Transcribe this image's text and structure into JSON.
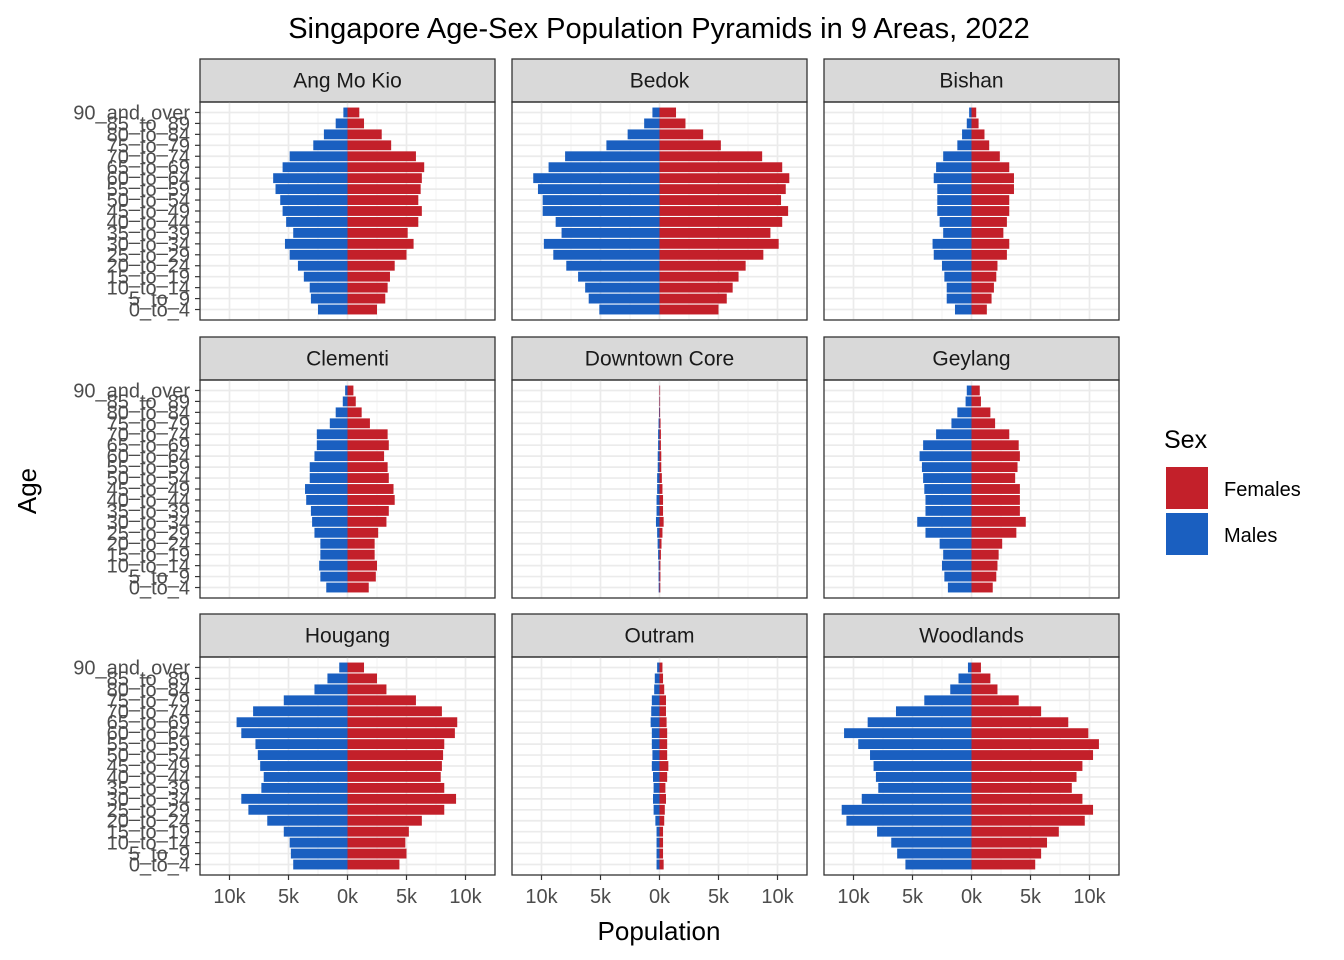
{
  "chart_data": {
    "type": "bar",
    "title": "Singapore Age-Sex Population Pyramids in 9 Areas, 2022",
    "xlabel": "Population",
    "ylabel": "Age",
    "xlim": [
      -12500,
      12500
    ],
    "x_tick_values": [
      -10000,
      -5000,
      0,
      5000,
      10000
    ],
    "x_tick_labels": [
      "10k",
      "5k",
      "0k",
      "5k",
      "10k"
    ],
    "grid": true,
    "legend": {
      "title": "Sex",
      "position": "right",
      "entries": [
        {
          "name": "Females",
          "color": "#c3202a"
        },
        {
          "name": "Males",
          "color": "#1a5fc0"
        }
      ]
    },
    "categories": [
      "0_to_4",
      "5_to_9",
      "10_to_14",
      "15_to_19",
      "20_to_24",
      "25_to_29",
      "30_to_34",
      "35_to_39",
      "40_to_44",
      "45_to_49",
      "50_to_54",
      "55_to_59",
      "60_to_64",
      "65_to_69",
      "70_to_74",
      "75_to_79",
      "80_to_84",
      "85_to_89",
      "90_and_over"
    ],
    "panels": [
      {
        "area": "Ang Mo Kio",
        "series": [
          {
            "name": "Males",
            "values": [
              2500,
              3100,
              3200,
              3700,
              4200,
              4900,
              5300,
              4600,
              5200,
              5500,
              5700,
              6100,
              6300,
              5500,
              4900,
              2900,
              2000,
              1000,
              350
            ]
          },
          {
            "name": "Females",
            "values": [
              2500,
              3200,
              3400,
              3600,
              4000,
              5000,
              5600,
              5100,
              6000,
              6300,
              6000,
              6200,
              6300,
              6500,
              5800,
              3700,
              2900,
              1400,
              1000
            ]
          }
        ]
      },
      {
        "area": "Bedok",
        "series": [
          {
            "name": "Males",
            "values": [
              5100,
              6000,
              6300,
              6900,
              7900,
              9000,
              9800,
              8300,
              8800,
              9900,
              9900,
              10300,
              10700,
              9400,
              8000,
              4500,
              2700,
              1300,
              600
            ]
          },
          {
            "name": "Females",
            "values": [
              5000,
              5700,
              6200,
              6700,
              7300,
              8800,
              10100,
              9400,
              10400,
              10900,
              10300,
              10700,
              11000,
              10400,
              8700,
              5200,
              3700,
              2200,
              1400
            ]
          }
        ]
      },
      {
        "area": "Bishan",
        "series": [
          {
            "name": "Males",
            "values": [
              1400,
              2100,
              2100,
              2300,
              2500,
              3200,
              3300,
              2400,
              2700,
              2900,
              2900,
              2900,
              3200,
              3000,
              2400,
              1200,
              800,
              400,
              200
            ]
          },
          {
            "name": "Females",
            "values": [
              1300,
              1700,
              1900,
              2100,
              2200,
              3000,
              3200,
              2700,
              3000,
              3200,
              3200,
              3600,
              3600,
              3200,
              2400,
              1500,
              1100,
              600,
              400
            ]
          }
        ]
      },
      {
        "area": "Clementi",
        "series": [
          {
            "name": "Males",
            "values": [
              1800,
              2300,
              2400,
              2300,
              2300,
              2800,
              3000,
              3100,
              3500,
              3600,
              3200,
              3200,
              2800,
              2600,
              2600,
              1500,
              1000,
              400,
              200
            ]
          },
          {
            "name": "Females",
            "values": [
              1800,
              2400,
              2500,
              2300,
              2300,
              2600,
              3300,
              3500,
              4000,
              3900,
              3500,
              3400,
              3100,
              3500,
              3400,
              1900,
              1200,
              700,
              500
            ]
          }
        ]
      },
      {
        "area": "Downtown Core",
        "series": [
          {
            "name": "Males",
            "values": [
              70,
              80,
              80,
              120,
              160,
              200,
              300,
              250,
              250,
              200,
              200,
              150,
              150,
              120,
              120,
              80,
              40,
              20,
              10
            ]
          },
          {
            "name": "Females",
            "values": [
              70,
              80,
              80,
              120,
              170,
              250,
              350,
              300,
              300,
              250,
              200,
              150,
              150,
              120,
              120,
              90,
              50,
              20,
              10
            ]
          }
        ]
      },
      {
        "area": "Geylang",
        "series": [
          {
            "name": "Males",
            "values": [
              2000,
              2300,
              2500,
              2400,
              2700,
              3900,
              4600,
              3900,
              3900,
              4000,
              4100,
              4200,
              4400,
              4100,
              3000,
              1700,
              1200,
              500,
              400
            ]
          },
          {
            "name": "Females",
            "values": [
              1800,
              2100,
              2200,
              2300,
              2600,
              3800,
              4600,
              4100,
              4100,
              4100,
              3700,
              3900,
              4100,
              4000,
              3200,
              2000,
              1600,
              800,
              700
            ]
          }
        ]
      },
      {
        "area": "Hougang",
        "series": [
          {
            "name": "Males",
            "values": [
              4600,
              4800,
              4900,
              5400,
              6800,
              8400,
              9000,
              7300,
              7100,
              7400,
              7600,
              7800,
              9000,
              9400,
              8000,
              5400,
              2800,
              1700,
              700
            ]
          },
          {
            "name": "Females",
            "values": [
              4400,
              5000,
              4900,
              5200,
              6300,
              8200,
              9200,
              8200,
              7900,
              8000,
              8100,
              8200,
              9100,
              9300,
              8000,
              5800,
              3300,
              2500,
              1400
            ]
          }
        ]
      },
      {
        "area": "Outram",
        "series": [
          {
            "name": "Males",
            "values": [
              250,
              250,
              250,
              250,
              350,
              500,
              550,
              500,
              550,
              650,
              600,
              650,
              650,
              750,
              700,
              650,
              450,
              400,
              200
            ]
          },
          {
            "name": "Females",
            "values": [
              350,
              300,
              300,
              300,
              400,
              450,
              550,
              500,
              650,
              750,
              650,
              650,
              650,
              600,
              550,
              550,
              400,
              300,
              250
            ]
          }
        ]
      },
      {
        "area": "Woodlands",
        "series": [
          {
            "name": "Males",
            "values": [
              5600,
              6300,
              6800,
              8000,
              10600,
              11000,
              9300,
              7900,
              8100,
              8300,
              8600,
              9600,
              10800,
              8800,
              6400,
              4000,
              1800,
              1100,
              300
            ]
          },
          {
            "name": "Females",
            "values": [
              5400,
              5900,
              6400,
              7400,
              9600,
              10300,
              9400,
              8500,
              8900,
              9400,
              10300,
              10800,
              9900,
              8200,
              5900,
              4000,
              2200,
              1600,
              800
            ]
          }
        ]
      }
    ]
  }
}
